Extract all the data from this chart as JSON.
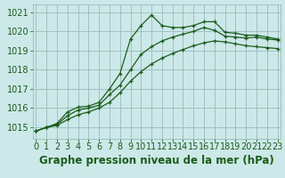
{
  "xlabel": "Graphe pression niveau de la mer (hPa)",
  "bg_color": "#cce8e8",
  "footer_color": "#2d6e2d",
  "grid_color": "#99bbbb",
  "line_color": "#1a5c1a",
  "x_ticks": [
    0,
    1,
    2,
    3,
    4,
    5,
    6,
    7,
    8,
    9,
    10,
    11,
    12,
    13,
    14,
    15,
    16,
    17,
    18,
    19,
    20,
    21,
    22,
    23
  ],
  "y_ticks": [
    1015,
    1016,
    1017,
    1018,
    1019,
    1020,
    1021
  ],
  "ylim": [
    1014.4,
    1021.4
  ],
  "xlim": [
    -0.3,
    23.3
  ],
  "series1": [
    1014.8,
    1015.0,
    1015.2,
    1015.8,
    1016.05,
    1016.1,
    1016.3,
    1017.0,
    1017.8,
    1019.6,
    1020.3,
    1020.85,
    1020.3,
    1020.2,
    1020.2,
    1020.3,
    1020.5,
    1020.5,
    1019.95,
    1019.9,
    1019.8,
    1019.8,
    1019.7,
    1019.6
  ],
  "series2": [
    1014.8,
    1015.0,
    1015.15,
    1015.6,
    1015.9,
    1016.0,
    1016.15,
    1016.7,
    1017.2,
    1018.0,
    1018.8,
    1019.2,
    1019.5,
    1019.7,
    1019.85,
    1020.0,
    1020.2,
    1020.05,
    1019.75,
    1019.7,
    1019.65,
    1019.7,
    1019.6,
    1019.55
  ],
  "series3": [
    1014.8,
    1015.0,
    1015.1,
    1015.4,
    1015.65,
    1015.8,
    1016.0,
    1016.3,
    1016.8,
    1017.4,
    1017.9,
    1018.3,
    1018.6,
    1018.85,
    1019.05,
    1019.25,
    1019.4,
    1019.5,
    1019.45,
    1019.35,
    1019.25,
    1019.2,
    1019.15,
    1019.1
  ],
  "tick_fontsize": 7,
  "xlabel_fontsize": 8.5,
  "marker_size": 3.0,
  "lw": 0.9
}
